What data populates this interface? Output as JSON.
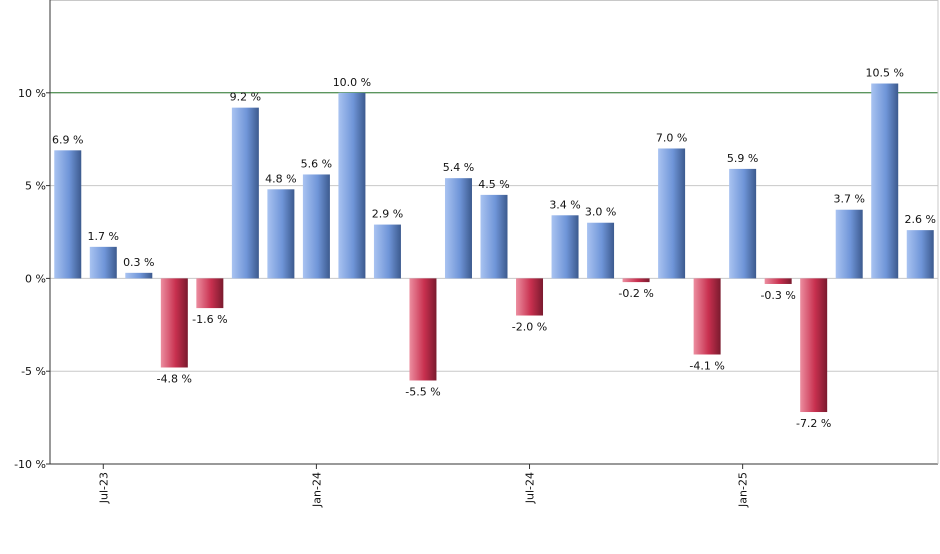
{
  "chart_data": {
    "type": "bar",
    "title": "",
    "xlabel": "",
    "ylabel": "",
    "ylim": [
      -10,
      15
    ],
    "y_ticks": [
      {
        "value": -10,
        "label": "-10 %"
      },
      {
        "value": -5,
        "label": "-5 %"
      },
      {
        "value": 0,
        "label": "0 %"
      },
      {
        "value": 5,
        "label": "5 %"
      },
      {
        "value": 10,
        "label": "10 %"
      }
    ],
    "reference_line": {
      "value": 10,
      "color": "#2e7d32"
    },
    "grid": true,
    "x_ticks": [
      {
        "label": "Jul-23",
        "index": 1
      },
      {
        "label": "Jan-24",
        "index": 7
      },
      {
        "label": "Jul-24",
        "index": 13
      },
      {
        "label": "Jan-25",
        "index": 19
      }
    ],
    "values": [
      6.9,
      1.7,
      0.3,
      -4.8,
      -1.6,
      9.2,
      4.8,
      5.6,
      10.0,
      2.9,
      -5.5,
      5.4,
      4.5,
      -2.0,
      3.4,
      3.0,
      -0.2,
      7.0,
      -4.1,
      5.9,
      -0.3,
      -7.2,
      3.7,
      10.5,
      2.6
    ],
    "labels": [
      "6.9 %",
      "1.7 %",
      "0.3 %",
      "-4.8 %",
      "-1.6 %",
      "9.2 %",
      "4.8 %",
      "5.6 %",
      "10.0 %",
      "2.9 %",
      "-5.5 %",
      "5.4 %",
      "4.5 %",
      "-2.0 %",
      "3.4 %",
      "3.0 %",
      "-0.2 %",
      "7.0 %",
      "-4.1 %",
      "5.9 %",
      "-0.3 %",
      "-7.2 %",
      "3.7 %",
      "10.5 %",
      "2.6 %"
    ],
    "colors": {
      "positive": "#6f95d8",
      "negative": "#c8304f",
      "grid": "#c8c8c8",
      "axis": "#333333"
    }
  }
}
